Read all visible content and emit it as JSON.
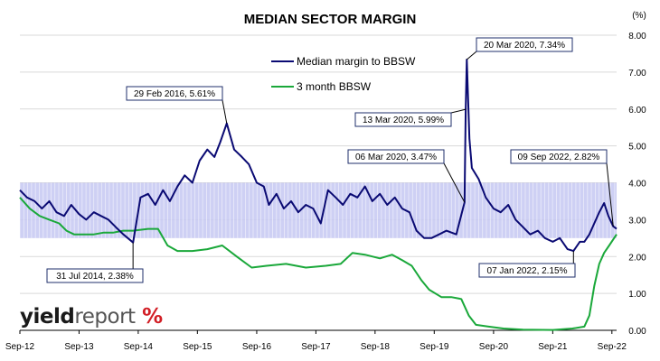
{
  "chart_data": {
    "type": "line",
    "title": "MEDIAN SECTOR MARGIN",
    "yunit": "(%)",
    "ylim": [
      0,
      8
    ],
    "yticks": [
      "0.00",
      "1.00",
      "2.00",
      "3.00",
      "4.00",
      "5.00",
      "6.00",
      "7.00",
      "8.00"
    ],
    "xrange": [
      "2012-09-01",
      "2022-09-30"
    ],
    "xticks": [
      {
        "date": "2012-09-01",
        "label": "Sep-12"
      },
      {
        "date": "2013-09-01",
        "label": "Sep-13"
      },
      {
        "date": "2014-09-01",
        "label": "Sep-14"
      },
      {
        "date": "2015-09-01",
        "label": "Sep-15"
      },
      {
        "date": "2016-09-01",
        "label": "Sep-16"
      },
      {
        "date": "2017-09-01",
        "label": "Sep-17"
      },
      {
        "date": "2018-09-01",
        "label": "Sep-18"
      },
      {
        "date": "2019-09-01",
        "label": "Sep-19"
      },
      {
        "date": "2020-09-01",
        "label": "Sep-20"
      },
      {
        "date": "2021-09-01",
        "label": "Sep-21"
      },
      {
        "date": "2022-09-01",
        "label": "Sep-22"
      }
    ],
    "band": {
      "from": 2.5,
      "to": 4.0,
      "color": "#c5c8f2"
    },
    "legend": "upper-center",
    "series": [
      {
        "name": "Median margin to BBSW",
        "color": "#0a0a73",
        "points": [
          [
            "2012-09-01",
            3.8
          ],
          [
            "2012-10-15",
            3.6
          ],
          [
            "2012-12-01",
            3.5
          ],
          [
            "2013-01-15",
            3.3
          ],
          [
            "2013-03-01",
            3.5
          ],
          [
            "2013-04-15",
            3.2
          ],
          [
            "2013-06-01",
            3.1
          ],
          [
            "2013-07-15",
            3.4
          ],
          [
            "2013-09-01",
            3.15
          ],
          [
            "2013-10-15",
            3.0
          ],
          [
            "2013-12-01",
            3.2
          ],
          [
            "2014-01-15",
            3.1
          ],
          [
            "2014-03-01",
            3.0
          ],
          [
            "2014-04-15",
            2.8
          ],
          [
            "2014-06-01",
            2.6
          ],
          [
            "2014-07-31",
            2.38
          ],
          [
            "2014-09-15",
            3.6
          ],
          [
            "2014-11-01",
            3.7
          ],
          [
            "2014-12-15",
            3.4
          ],
          [
            "2015-02-01",
            3.8
          ],
          [
            "2015-03-15",
            3.5
          ],
          [
            "2015-05-01",
            3.9
          ],
          [
            "2015-06-15",
            4.2
          ],
          [
            "2015-08-01",
            4.0
          ],
          [
            "2015-09-15",
            4.6
          ],
          [
            "2015-11-01",
            4.9
          ],
          [
            "2015-12-15",
            4.7
          ],
          [
            "2016-01-20",
            5.1
          ],
          [
            "2016-02-29",
            5.61
          ],
          [
            "2016-04-15",
            4.9
          ],
          [
            "2016-06-01",
            4.7
          ],
          [
            "2016-07-15",
            4.5
          ],
          [
            "2016-09-01",
            4.0
          ],
          [
            "2016-10-15",
            3.9
          ],
          [
            "2016-11-15",
            3.4
          ],
          [
            "2017-01-01",
            3.7
          ],
          [
            "2017-02-15",
            3.3
          ],
          [
            "2017-04-01",
            3.5
          ],
          [
            "2017-05-15",
            3.2
          ],
          [
            "2017-07-01",
            3.4
          ],
          [
            "2017-08-15",
            3.3
          ],
          [
            "2017-10-01",
            2.9
          ],
          [
            "2017-11-15",
            3.8
          ],
          [
            "2018-01-01",
            3.6
          ],
          [
            "2018-02-15",
            3.4
          ],
          [
            "2018-04-01",
            3.7
          ],
          [
            "2018-05-15",
            3.6
          ],
          [
            "2018-07-01",
            3.9
          ],
          [
            "2018-08-15",
            3.5
          ],
          [
            "2018-10-01",
            3.7
          ],
          [
            "2018-11-15",
            3.4
          ],
          [
            "2019-01-01",
            3.6
          ],
          [
            "2019-02-15",
            3.3
          ],
          [
            "2019-04-01",
            3.2
          ],
          [
            "2019-05-15",
            2.7
          ],
          [
            "2019-07-01",
            2.5
          ],
          [
            "2019-08-15",
            2.5
          ],
          [
            "2019-10-01",
            2.6
          ],
          [
            "2019-11-15",
            2.7
          ],
          [
            "2020-01-15",
            2.6
          ],
          [
            "2020-03-06",
            3.47
          ],
          [
            "2020-03-13",
            5.99
          ],
          [
            "2020-03-20",
            7.34
          ],
          [
            "2020-04-05",
            5.2
          ],
          [
            "2020-04-20",
            4.4
          ],
          [
            "2020-06-01",
            4.1
          ],
          [
            "2020-07-15",
            3.6
          ],
          [
            "2020-09-01",
            3.3
          ],
          [
            "2020-10-15",
            3.2
          ],
          [
            "2020-12-01",
            3.4
          ],
          [
            "2021-01-15",
            3.0
          ],
          [
            "2021-03-01",
            2.8
          ],
          [
            "2021-04-15",
            2.6
          ],
          [
            "2021-06-01",
            2.7
          ],
          [
            "2021-07-15",
            2.5
          ],
          [
            "2021-09-01",
            2.4
          ],
          [
            "2021-10-15",
            2.5
          ],
          [
            "2021-12-01",
            2.2
          ],
          [
            "2022-01-07",
            2.15
          ],
          [
            "2022-02-15",
            2.4
          ],
          [
            "2022-03-15",
            2.4
          ],
          [
            "2022-04-15",
            2.6
          ],
          [
            "2022-05-15",
            2.9
          ],
          [
            "2022-06-15",
            3.2
          ],
          [
            "2022-07-15",
            3.45
          ],
          [
            "2022-08-10",
            3.1
          ],
          [
            "2022-09-09",
            2.82
          ],
          [
            "2022-09-30",
            2.75
          ]
        ]
      },
      {
        "name": "3 month BBSW",
        "color": "#1aa83a",
        "points": [
          [
            "2012-09-01",
            3.6
          ],
          [
            "2012-11-01",
            3.3
          ],
          [
            "2013-01-01",
            3.1
          ],
          [
            "2013-03-01",
            3.0
          ],
          [
            "2013-05-01",
            2.9
          ],
          [
            "2013-06-15",
            2.7
          ],
          [
            "2013-08-01",
            2.6
          ],
          [
            "2013-10-01",
            2.6
          ],
          [
            "2013-12-01",
            2.6
          ],
          [
            "2014-02-01",
            2.65
          ],
          [
            "2014-04-01",
            2.65
          ],
          [
            "2014-06-01",
            2.7
          ],
          [
            "2014-08-01",
            2.7
          ],
          [
            "2014-11-01",
            2.75
          ],
          [
            "2015-01-01",
            2.75
          ],
          [
            "2015-03-01",
            2.3
          ],
          [
            "2015-05-01",
            2.15
          ],
          [
            "2015-08-01",
            2.15
          ],
          [
            "2015-11-01",
            2.2
          ],
          [
            "2016-02-01",
            2.3
          ],
          [
            "2016-05-01",
            2.0
          ],
          [
            "2016-08-01",
            1.7
          ],
          [
            "2016-11-01",
            1.75
          ],
          [
            "2017-03-01",
            1.8
          ],
          [
            "2017-07-01",
            1.7
          ],
          [
            "2017-11-01",
            1.75
          ],
          [
            "2018-02-01",
            1.8
          ],
          [
            "2018-04-15",
            2.1
          ],
          [
            "2018-07-01",
            2.05
          ],
          [
            "2018-10-01",
            1.95
          ],
          [
            "2018-12-15",
            2.05
          ],
          [
            "2019-02-15",
            1.9
          ],
          [
            "2019-04-15",
            1.75
          ],
          [
            "2019-06-15",
            1.35
          ],
          [
            "2019-08-01",
            1.1
          ],
          [
            "2019-10-15",
            0.9
          ],
          [
            "2019-12-15",
            0.9
          ],
          [
            "2020-02-15",
            0.85
          ],
          [
            "2020-04-01",
            0.4
          ],
          [
            "2020-05-15",
            0.15
          ],
          [
            "2020-08-01",
            0.1
          ],
          [
            "2020-11-01",
            0.05
          ],
          [
            "2021-03-01",
            0.02
          ],
          [
            "2021-09-01",
            0.01
          ],
          [
            "2022-01-01",
            0.05
          ],
          [
            "2022-03-15",
            0.1
          ],
          [
            "2022-04-15",
            0.4
          ],
          [
            "2022-05-15",
            1.2
          ],
          [
            "2022-06-15",
            1.8
          ],
          [
            "2022-07-15",
            2.1
          ],
          [
            "2022-08-15",
            2.3
          ],
          [
            "2022-09-30",
            2.6
          ]
        ]
      }
    ],
    "annotations": [
      {
        "text": "31 Jul 2014,  2.38%",
        "date": "2014-07-31",
        "value": 2.38,
        "series": 0
      },
      {
        "text": "29 Feb 2016,  5.61%",
        "date": "2016-02-29",
        "value": 5.61,
        "series": 0
      },
      {
        "text": "06 Mar 2020,  3.47%",
        "date": "2020-03-06",
        "value": 3.47,
        "series": 0
      },
      {
        "text": "13 Mar 2020,  5.99%",
        "date": "2020-03-13",
        "value": 5.99,
        "series": 0
      },
      {
        "text": "20 Mar 2020,  7.34%",
        "date": "2020-03-20",
        "value": 7.34,
        "series": 0
      },
      {
        "text": "09 Sep 2022,  2.82%",
        "date": "2022-09-09",
        "value": 2.82,
        "series": 0
      },
      {
        "text": "07 Jan 2022,  2.15%",
        "date": "2022-01-07",
        "value": 2.15,
        "series": 0
      }
    ]
  },
  "logo": {
    "text_bold": "yield",
    "text_light": "report",
    "symbol": "%"
  }
}
